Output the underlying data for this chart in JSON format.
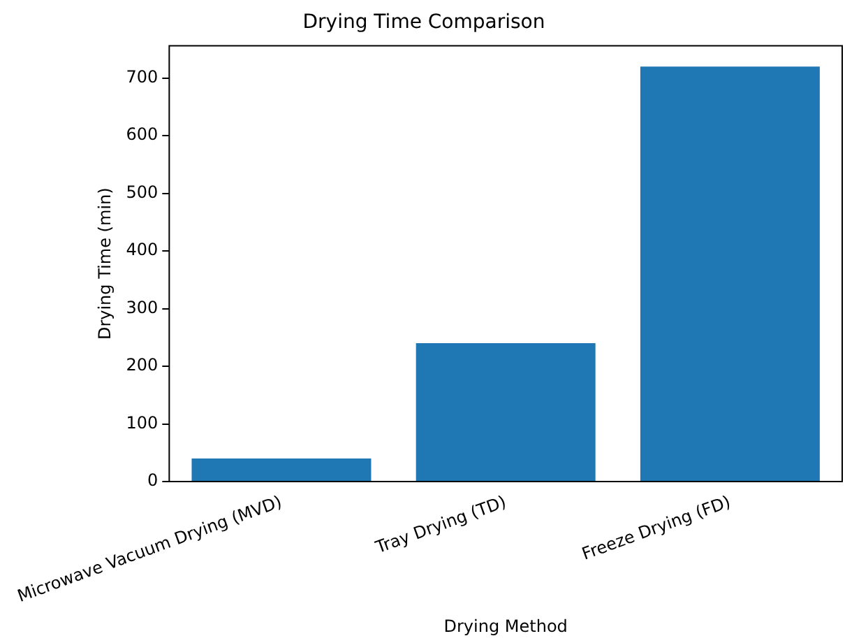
{
  "chart_data": {
    "type": "bar",
    "title": "Drying Time Comparison",
    "xlabel": "Drying Method",
    "ylabel": "Drying Time (min)",
    "categories": [
      "Microwave Vacuum Drying (MVD)",
      "Tray Drying (TD)",
      "Freeze Drying (FD)"
    ],
    "values": [
      40,
      240,
      720
    ],
    "color": "#1f77b4",
    "ylim": [
      0,
      756
    ],
    "yticks": [
      0,
      100,
      200,
      300,
      400,
      500,
      600,
      700
    ],
    "grid": false,
    "legend": false
  }
}
